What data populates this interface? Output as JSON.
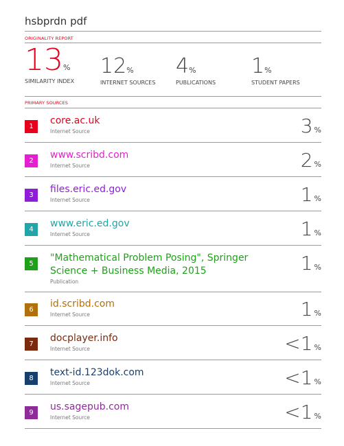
{
  "document_title": "hsbprdn pdf",
  "originality_report_label": "ORIGINALITY REPORT",
  "stats": [
    {
      "value": "13",
      "unit": "%",
      "label": "SIMILARITY INDEX"
    },
    {
      "value": "12",
      "unit": "%",
      "label": "INTERNET SOURCES"
    },
    {
      "value": "4",
      "unit": "%",
      "label": "PUBLICATIONS"
    },
    {
      "value": "1",
      "unit": "%",
      "label": "STUDENT PAPERS"
    }
  ],
  "primary_sources_label": "PRIMARY SOURCES",
  "sources": [
    {
      "rank": "1",
      "name": "core.ac.uk",
      "type": "Internet Source",
      "share": "3",
      "unit": "%",
      "color": "#e8001c"
    },
    {
      "rank": "2",
      "name": "www.scribd.com",
      "type": "Internet Source",
      "share": "2",
      "unit": "%",
      "color": "#e41fd0"
    },
    {
      "rank": "3",
      "name": "files.eric.ed.gov",
      "type": "Internet Source",
      "share": "1",
      "unit": "%",
      "color": "#8f1ed8"
    },
    {
      "rank": "4",
      "name": "www.eric.ed.gov",
      "type": "Internet Source",
      "share": "1",
      "unit": "%",
      "color": "#22a5a8"
    },
    {
      "rank": "5",
      "name": "\"Mathematical Problem Posing\", Springer Science + Business Media, 2015",
      "type": "Publication",
      "share": "1",
      "unit": "%",
      "color": "#20a01a"
    },
    {
      "rank": "6",
      "name": "id.scribd.com",
      "type": "Internet Source",
      "share": "1",
      "unit": "%",
      "color": "#b0700e"
    },
    {
      "rank": "7",
      "name": "docplayer.info",
      "type": "Internet Source",
      "share": "<1",
      "unit": "%",
      "color": "#7a2a0e"
    },
    {
      "rank": "8",
      "name": "text-id.123dok.com",
      "type": "Internet Source",
      "share": "<1",
      "unit": "%",
      "color": "#173f6e"
    },
    {
      "rank": "9",
      "name": "us.sagepub.com",
      "type": "Internet Source",
      "share": "<1",
      "unit": "%",
      "color": "#8e2d98"
    }
  ]
}
